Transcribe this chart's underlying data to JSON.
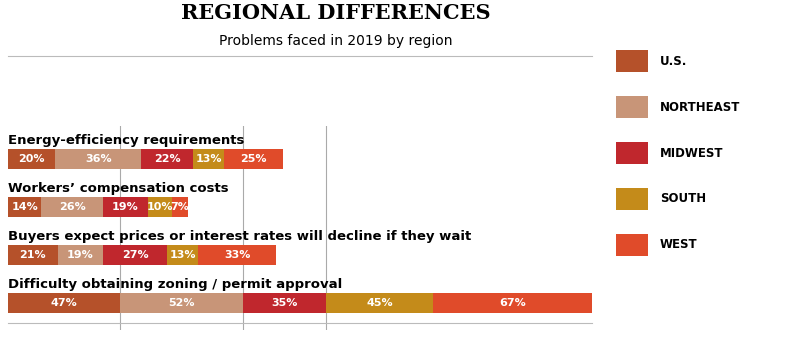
{
  "title": "REGIONAL DIFFERENCES",
  "subtitle": "Problems faced in 2019 by region",
  "categories": [
    "Energy-efficiency requirements",
    "Workers’ compensation costs",
    "Buyers expect prices or interest rates will decline if they wait",
    "Difficulty obtaining zoning / permit approval"
  ],
  "series": {
    "U.S.": [
      20,
      14,
      21,
      47
    ],
    "NORTHEAST": [
      36,
      26,
      19,
      52
    ],
    "MIDWEST": [
      22,
      19,
      27,
      35
    ],
    "SOUTH": [
      13,
      10,
      13,
      45
    ],
    "WEST": [
      25,
      7,
      33,
      67
    ]
  },
  "colors": {
    "U.S.": "#B5512A",
    "NORTHEAST": "#C89578",
    "MIDWEST": "#C0272D",
    "SOUTH": "#C48B1A",
    "WEST": "#E04B2A"
  },
  "background": "#FFFFFF",
  "x_max": 246,
  "label_fontsize": 8.0,
  "category_fontsize": 9.5,
  "title_fontsize": 15,
  "subtitle_fontsize": 10,
  "legend_fontsize": 8.5
}
